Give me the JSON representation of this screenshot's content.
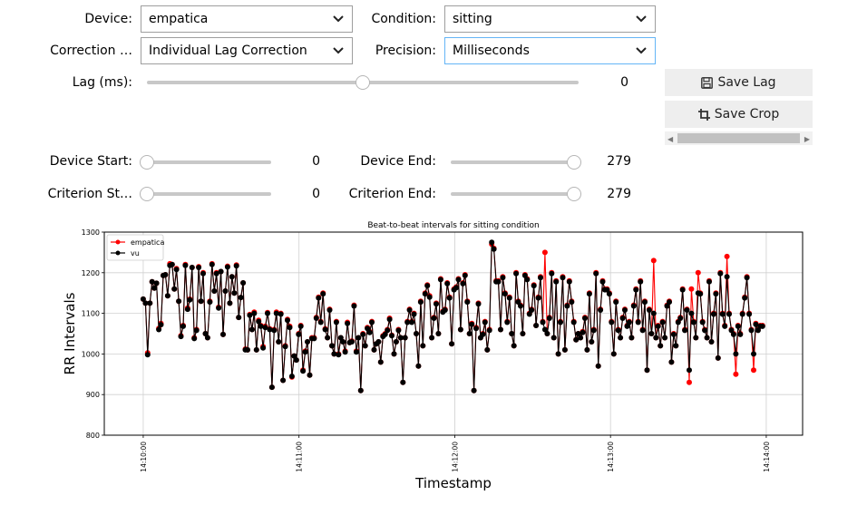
{
  "controls": {
    "device": {
      "label": "Device:",
      "value": "empatica"
    },
    "condition": {
      "label": "Condition:",
      "value": "sitting"
    },
    "correction": {
      "label": "Correction …",
      "value": "Individual Lag Correction"
    },
    "precision": {
      "label": "Precision:",
      "value": "Milliseconds"
    },
    "lag": {
      "label": "Lag (ms):",
      "value": "0",
      "fraction": 0.5
    },
    "device_start": {
      "label": "Device Start:",
      "value": "0",
      "fraction": 0
    },
    "device_end": {
      "label": "Device End:",
      "value": "279",
      "fraction": 1
    },
    "criterion_start": {
      "label": "Criterion St…",
      "value": "0",
      "fraction": 0
    },
    "criterion_end": {
      "label": "Criterion End:",
      "value": "279",
      "fraction": 1
    }
  },
  "buttons": {
    "save_lag": {
      "label": "Save Lag",
      "icon": "floppy-disk-icon"
    },
    "save_crop": {
      "label": "Save Crop",
      "icon": "crop-icon"
    }
  },
  "chart_data": {
    "type": "line",
    "title": "Beat-to-beat intervals for sitting condition",
    "xlabel": "Timestamp",
    "ylabel": "RR Intervals",
    "ylim": [
      800,
      1300
    ],
    "yticks": [
      800,
      900,
      1000,
      1100,
      1200,
      1300
    ],
    "xlim_seconds": [
      -15,
      254
    ],
    "xticks": [
      {
        "t": 0,
        "label": "14:10:00"
      },
      {
        "t": 60,
        "label": "14:11:00"
      },
      {
        "t": 120,
        "label": "14:12:00"
      },
      {
        "t": 180,
        "label": "14:13:00"
      },
      {
        "t": 240,
        "label": "14:14:00"
      }
    ],
    "grid": true,
    "legend": "top-left",
    "series": [
      {
        "name": "empatica",
        "color": "#ff0000",
        "values": [
          1135,
          1125,
          1003,
          1125,
          1178,
          1162,
          1174,
          1063,
          1075,
          1193,
          1195,
          1143,
          1222,
          1220,
          1160,
          1210,
          1130,
          1045,
          1070,
          1220,
          1113,
          1135,
          1213,
          1040,
          1060,
          1215,
          1130,
          1200,
          1050,
          1040,
          1130,
          1222,
          1155,
          1200,
          1115,
          1203,
          1048,
          1155,
          1216,
          1125,
          1190,
          1150,
          1219,
          1090,
          1139,
          1175,
          1012,
          1010,
          1097,
          1060,
          1103,
          1010,
          1083,
          1070,
          1018,
          1068,
          1102,
          1062,
          918,
          1060,
          1103,
          1030,
          1100,
          935,
          1020,
          1085,
          1068,
          943,
          995,
          985,
          1050,
          1070,
          960,
          1007,
          1030,
          948,
          1040,
          1040,
          1090,
          1140,
          1080,
          1150,
          1062,
          1040,
          1110,
          1020,
          1000,
          1080,
          1000,
          1040,
          1030,
          1007,
          1078,
          1028,
          1032,
          1120,
          1007,
          1040,
          910,
          1050,
          1020,
          1065,
          1055,
          1080,
          1010,
          1025,
          1030,
          980,
          1045,
          1050,
          1060,
          1088,
          1046,
          1000,
          1030,
          1060,
          1040,
          930,
          1040,
          1080,
          1110,
          1080,
          1100,
          1050,
          970,
          1130,
          1020,
          1150,
          1170,
          1143,
          1040,
          1090,
          1125,
          1050,
          1185,
          1105,
          1110,
          1175,
          1140,
          1025,
          1160,
          1165,
          1185,
          1060,
          1175,
          1195,
          1130,
          1050,
          1075,
          910,
          1065,
          1125,
          1040,
          1050,
          1080,
          1010,
          1060,
          1270,
          1260,
          1180,
          1180,
          1060,
          1190,
          1150,
          1080,
          1140,
          1050,
          1020,
          1200,
          1130,
          1120,
          1050,
          1195,
          1185,
          1100,
          1110,
          1170,
          1070,
          1140,
          1190,
          1080,
          1250,
          1050,
          1090,
          1200,
          1040,
          1180,
          1000,
          1080,
          1190,
          1010,
          1120,
          1180,
          1130,
          1080,
          1035,
          1050,
          1040,
          1055,
          1090,
          1010,
          1150,
          1030,
          1060,
          1200,
          970,
          1110,
          1180,
          1160,
          1160,
          1150,
          1080,
          1000,
          1130,
          1060,
          1040,
          1090,
          1110,
          1070,
          1080,
          1040,
          1120,
          1160,
          1080,
          1180,
          1060,
          1130,
          960,
          1110,
          1050,
          1230,
          1040,
          1070,
          1020,
          1080,
          1040,
          1120,
          1130,
          980,
          1050,
          1020,
          1080,
          1090,
          1160,
          1060,
          1110,
          930,
          1160,
          1080,
          1040,
          1200,
          1150,
          1080,
          1060,
          1040,
          1180,
          1030,
          1100,
          1150,
          990,
          1200,
          1100,
          1070,
          1240,
          1100,
          1060,
          1050,
          950,
          1070,
          1050,
          1100,
          1140,
          1190,
          1100,
          1060,
          960,
          1075,
          1060,
          1070,
          1070
        ],
        "x_start": 0,
        "x_step": 0.855
      },
      {
        "name": "vu",
        "color": "#000000",
        "values": [
          1135,
          1125,
          998,
          1125,
          1178,
          1162,
          1174,
          1060,
          1072,
          1193,
          1195,
          1143,
          1218,
          1220,
          1160,
          1208,
          1130,
          1043,
          1068,
          1218,
          1110,
          1133,
          1213,
          1038,
          1058,
          1213,
          1130,
          1198,
          1050,
          1040,
          1128,
          1220,
          1155,
          1198,
          1113,
          1203,
          1048,
          1155,
          1214,
          1125,
          1190,
          1150,
          1217,
          1090,
          1139,
          1175,
          1010,
          1010,
          1095,
          1060,
          1100,
          1010,
          1080,
          1068,
          1015,
          1065,
          1100,
          1060,
          918,
          1058,
          1100,
          1030,
          1098,
          935,
          1018,
          1083,
          1065,
          945,
          995,
          985,
          1048,
          1068,
          958,
          1005,
          1030,
          948,
          1038,
          1038,
          1088,
          1138,
          1078,
          1148,
          1060,
          1040,
          1108,
          1020,
          1000,
          1078,
          998,
          1040,
          1030,
          1005,
          1075,
          1028,
          1030,
          1118,
          1005,
          1040,
          910,
          1048,
          1020,
          1063,
          1053,
          1078,
          1010,
          1025,
          1030,
          980,
          1043,
          1048,
          1058,
          1085,
          1045,
          1000,
          1030,
          1058,
          1040,
          930,
          1040,
          1078,
          1108,
          1078,
          1098,
          1050,
          970,
          1128,
          1020,
          1148,
          1168,
          1140,
          1040,
          1088,
          1123,
          1050,
          1183,
          1103,
          1108,
          1173,
          1138,
          1025,
          1158,
          1163,
          1183,
          1060,
          1173,
          1193,
          1128,
          1050,
          1073,
          910,
          1063,
          1123,
          1040,
          1048,
          1078,
          1010,
          1058,
          1275,
          1258,
          1178,
          1178,
          1060,
          1188,
          1148,
          1078,
          1138,
          1050,
          1020,
          1198,
          1128,
          1118,
          1050,
          1193,
          1183,
          1098,
          1108,
          1168,
          1070,
          1138,
          1188,
          1078,
          1060,
          1050,
          1088,
          1198,
          1040,
          1178,
          1000,
          1078,
          1188,
          1010,
          1118,
          1178,
          1128,
          1078,
          1035,
          1050,
          1040,
          1053,
          1088,
          1010,
          1148,
          1030,
          1058,
          1198,
          970,
          1108,
          1178,
          1158,
          1158,
          1148,
          1078,
          1000,
          1128,
          1058,
          1040,
          1088,
          1108,
          1068,
          1078,
          1040,
          1118,
          1158,
          1078,
          1178,
          1058,
          1128,
          960,
          1108,
          1050,
          1100,
          1040,
          1068,
          1020,
          1078,
          1040,
          1118,
          1128,
          980,
          1048,
          1020,
          1078,
          1088,
          1158,
          1058,
          1108,
          960,
          1100,
          1078,
          1040,
          1150,
          1148,
          1078,
          1058,
          1040,
          1178,
          1030,
          1098,
          1148,
          990,
          1198,
          1098,
          1068,
          1190,
          1098,
          1058,
          1048,
          1000,
          1068,
          1048,
          1098,
          1138,
          1188,
          1098,
          1058,
          1000,
          1073,
          1058,
          1068,
          1068
        ],
        "x_start": 0,
        "x_step": 0.855
      }
    ]
  }
}
